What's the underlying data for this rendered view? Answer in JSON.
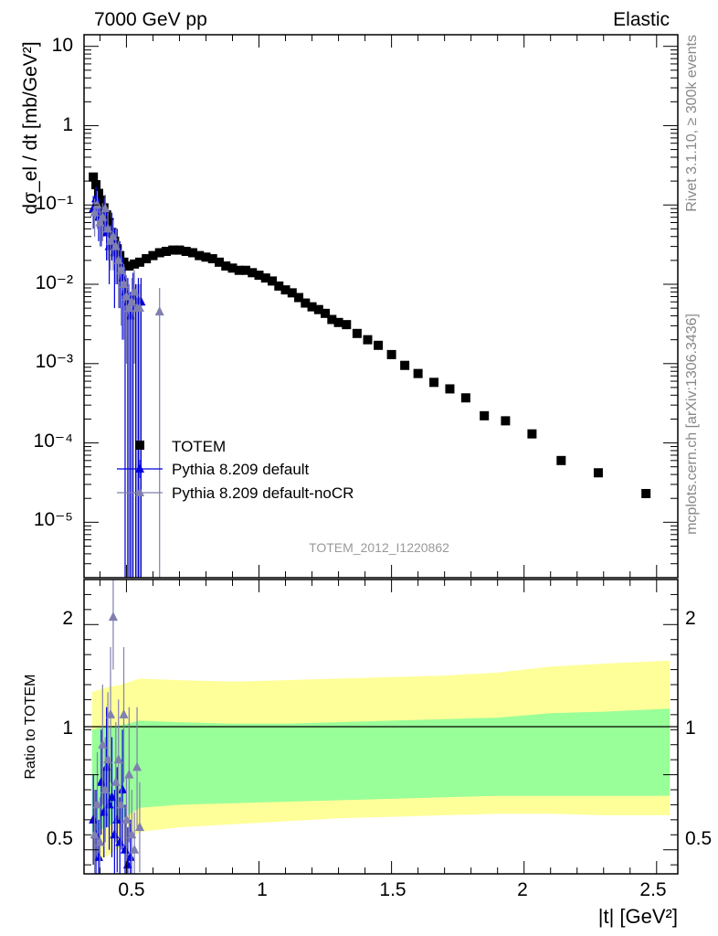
{
  "header": {
    "left": "7000 GeV pp",
    "right": "Elastic"
  },
  "side_labels": {
    "rivet": "Rivet 3.1.10, ≥ 300k events",
    "mcplots": "mcplots.cern.ch [arXiv:1306.3436]"
  },
  "watermark": "TOTEM_2012_I1220862",
  "chart_data": [
    {
      "type": "scatter",
      "panel": "main",
      "ylabel": "dσ_el / dt [mb/GeV²]",
      "yscale": "log",
      "ylim": [
        2e-06,
        14
      ],
      "xlim": [
        0.34,
        2.58
      ],
      "y_tick_labels": [
        "10",
        "1",
        "10⁻¹",
        "10⁻²",
        "10⁻³",
        "10⁻⁴",
        "10⁻⁵"
      ],
      "legend_position": "middle-left",
      "series": [
        {
          "name": "TOTEM",
          "marker": "square",
          "color": "#000000",
          "x": [
            0.375,
            0.385,
            0.395,
            0.405,
            0.415,
            0.425,
            0.435,
            0.445,
            0.455,
            0.465,
            0.475,
            0.49,
            0.51,
            0.53,
            0.55,
            0.575,
            0.6,
            0.625,
            0.65,
            0.675,
            0.7,
            0.725,
            0.75,
            0.775,
            0.8,
            0.825,
            0.85,
            0.875,
            0.9,
            0.925,
            0.95,
            0.975,
            1.0,
            1.025,
            1.05,
            1.075,
            1.1,
            1.125,
            1.15,
            1.175,
            1.2,
            1.225,
            1.25,
            1.275,
            1.3,
            1.33,
            1.37,
            1.41,
            1.45,
            1.5,
            1.55,
            1.6,
            1.66,
            1.72,
            1.78,
            1.85,
            1.93,
            2.03,
            2.14,
            2.28,
            2.46
          ],
          "y": [
            0.225,
            0.18,
            0.14,
            0.115,
            0.092,
            0.075,
            0.06,
            0.045,
            0.035,
            0.028,
            0.023,
            0.019,
            0.017,
            0.018,
            0.019,
            0.021,
            0.023,
            0.025,
            0.026,
            0.027,
            0.027,
            0.026,
            0.025,
            0.023,
            0.022,
            0.021,
            0.019,
            0.017,
            0.016,
            0.015,
            0.015,
            0.014,
            0.013,
            0.012,
            0.011,
            0.0095,
            0.0085,
            0.0078,
            0.0068,
            0.0058,
            0.0052,
            0.0048,
            0.0043,
            0.0036,
            0.0033,
            0.0031,
            0.0024,
            0.002,
            0.0017,
            0.0013,
            0.00095,
            0.00075,
            0.00058,
            0.00048,
            0.00037,
            0.00022,
            0.00019,
            0.00013,
            6e-05,
            4.2e-05,
            2.3e-05
          ]
        },
        {
          "name": "Pythia 8.209 default",
          "marker": "triangle",
          "color": "#0000dd",
          "x": [
            0.375,
            0.385,
            0.395,
            0.405,
            0.415,
            0.425,
            0.435,
            0.445,
            0.455,
            0.465,
            0.475,
            0.485,
            0.495,
            0.505,
            0.515,
            0.525,
            0.535,
            0.545,
            0.555
          ],
          "y": [
            0.09,
            0.12,
            0.07,
            0.06,
            0.08,
            0.045,
            0.03,
            0.05,
            0.025,
            0.03,
            0.02,
            0.012,
            0.008,
            0.006,
            0.004,
            0.007,
            0.005,
            0.006,
            0.006
          ],
          "yerr": [
            0.04,
            0.05,
            0.035,
            0.03,
            0.04,
            0.025,
            0.02,
            0.03,
            0.02,
            0.02,
            0.015,
            0.01,
            0.008,
            0.006,
            0.004,
            0.007,
            0.005,
            0.006,
            0.006
          ]
        },
        {
          "name": "Pythia 8.209 default-noCR",
          "marker": "triangle",
          "color": "#8080b0",
          "x": [
            0.38,
            0.39,
            0.4,
            0.41,
            0.42,
            0.43,
            0.44,
            0.45,
            0.46,
            0.47,
            0.48,
            0.49,
            0.5,
            0.51,
            0.52,
            0.53,
            0.54,
            0.55,
            0.625
          ],
          "y": [
            0.08,
            0.1,
            0.06,
            0.07,
            0.09,
            0.05,
            0.035,
            0.04,
            0.03,
            0.02,
            0.015,
            0.01,
            0.007,
            0.005,
            0.006,
            0.008,
            0.005,
            0.005,
            0.0045
          ],
          "yerr": [
            0.04,
            0.05,
            0.03,
            0.035,
            0.045,
            0.03,
            0.02,
            0.025,
            0.02,
            0.015,
            0.012,
            0.008,
            0.006,
            0.005,
            0.006,
            0.007,
            0.005,
            0.005,
            0.0045
          ]
        }
      ]
    },
    {
      "type": "scatter",
      "panel": "ratio",
      "ylabel": "Ratio to TOTEM",
      "xlabel": "|t| [GeV²]",
      "ylim": [
        0.34,
        2.3
      ],
      "xlim": [
        0.34,
        2.58
      ],
      "y_tick_labels": [
        "2",
        "1",
        "0.5"
      ],
      "x_tick_labels": [
        "0.5",
        "1",
        "1.5",
        "2",
        "2.5"
      ],
      "x_ticks": [
        0.5,
        1,
        1.5,
        2,
        2.5
      ],
      "bands": {
        "x": [
          0.37,
          0.42,
          0.48,
          0.55,
          0.7,
          0.9,
          1.1,
          1.3,
          1.5,
          1.7,
          1.9,
          2.1,
          2.3,
          2.55
        ],
        "yellow_low": [
          0.4,
          0.45,
          0.52,
          0.62,
          0.65,
          0.67,
          0.69,
          0.71,
          0.72,
          0.73,
          0.74,
          0.74,
          0.73,
          0.73
        ],
        "yellow_high": [
          1.55,
          1.58,
          1.6,
          1.64,
          1.63,
          1.62,
          1.63,
          1.64,
          1.65,
          1.66,
          1.68,
          1.72,
          1.74,
          1.76
        ],
        "green_low": [
          0.6,
          0.65,
          0.7,
          0.78,
          0.8,
          0.81,
          0.82,
          0.83,
          0.84,
          0.85,
          0.86,
          0.86,
          0.86,
          0.86
        ],
        "green_high": [
          1.3,
          1.32,
          1.33,
          1.36,
          1.35,
          1.34,
          1.34,
          1.35,
          1.36,
          1.37,
          1.38,
          1.41,
          1.42,
          1.44
        ],
        "yellow_color": "#ffff99",
        "green_color": "#99ff99"
      },
      "series": [
        {
          "name": "Pythia 8.209 default",
          "marker": "triangle",
          "color": "#0000dd",
          "x": [
            0.375,
            0.385,
            0.395,
            0.405,
            0.415,
            0.425,
            0.435,
            0.445,
            0.455,
            0.465,
            0.475,
            0.485,
            0.495,
            0.505,
            0.515
          ],
          "y": [
            0.7,
            0.6,
            0.45,
            0.95,
            0.75,
            1.05,
            0.8,
            0.85,
            0.6,
            0.7,
            0.55,
            0.9,
            0.5,
            0.4,
            0.45
          ],
          "yerr": [
            0.3,
            0.3,
            0.25,
            0.35,
            0.3,
            0.4,
            0.3,
            0.4,
            0.3,
            0.35,
            0.3,
            0.4,
            0.3,
            0.25,
            0.25
          ]
        },
        {
          "name": "Pythia 8.209 default-noCR",
          "marker": "triangle",
          "color": "#8080b0",
          "x": [
            0.38,
            0.39,
            0.4,
            0.41,
            0.42,
            0.43,
            0.44,
            0.45,
            0.46,
            0.47,
            0.48,
            0.49,
            0.5,
            0.51,
            0.52,
            0.53,
            0.54,
            0.55
          ],
          "y": [
            0.6,
            0.8,
            0.55,
            1.2,
            0.9,
            1.1,
            1.4,
            2.05,
            0.95,
            1.1,
            0.8,
            1.4,
            0.7,
            1.0,
            0.6,
            0.5,
            1.05,
            0.65
          ],
          "yerr": [
            0.3,
            0.35,
            0.3,
            0.4,
            0.35,
            0.45,
            0.45,
            0.35,
            0.4,
            0.4,
            0.3,
            0.45,
            0.3,
            0.45,
            0.3,
            0.25,
            0.4,
            0.3
          ]
        }
      ]
    }
  ]
}
